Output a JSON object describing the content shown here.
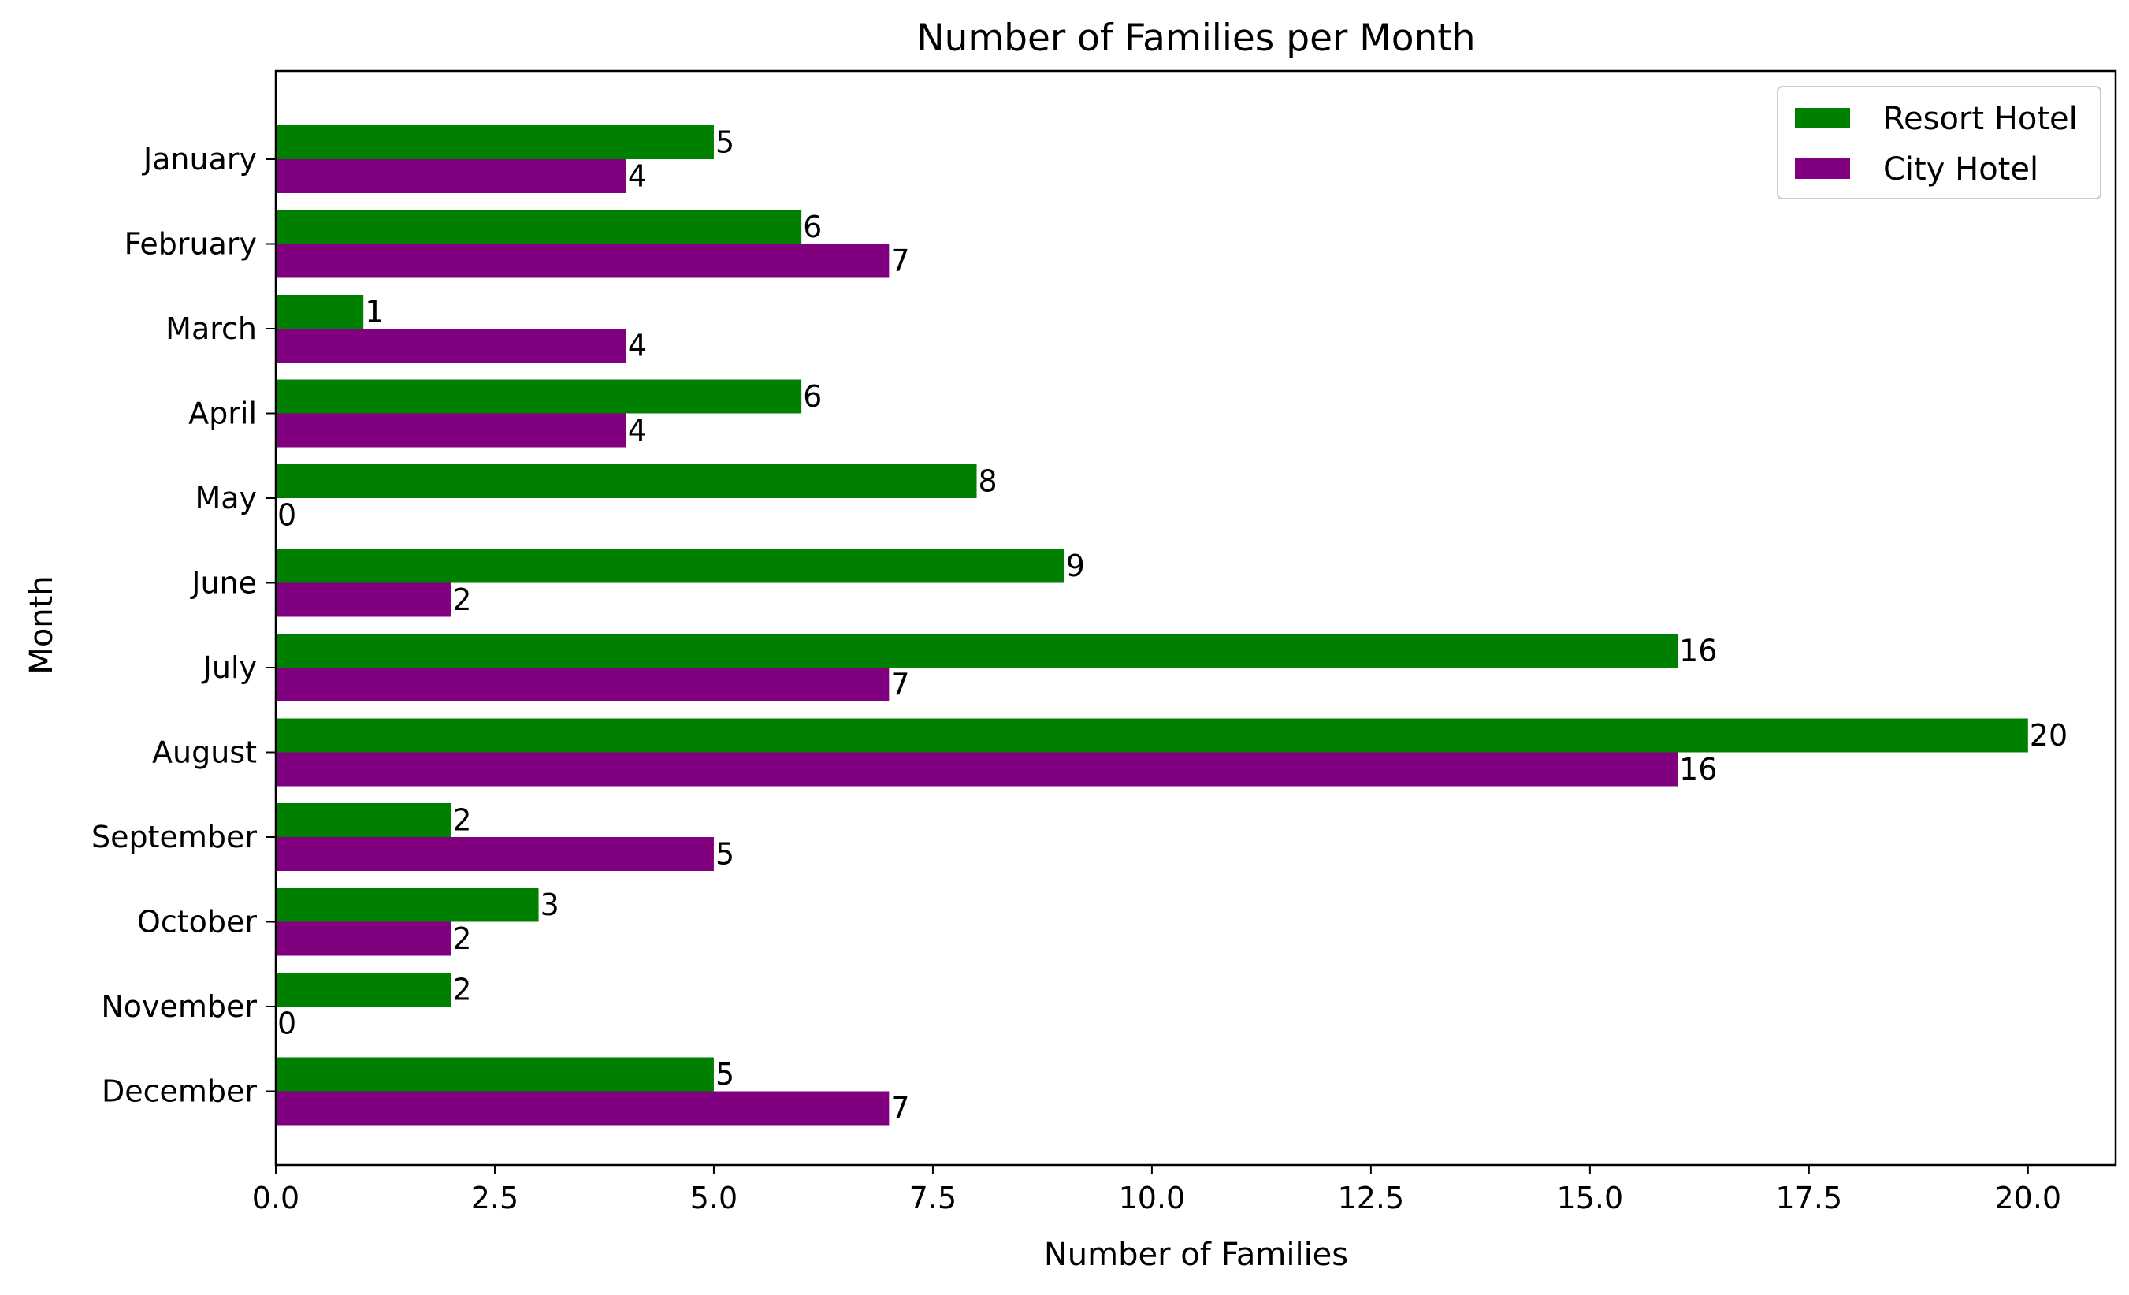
{
  "chart_data": {
    "type": "bar",
    "orientation": "horizontal",
    "title": "Number of Families per Month",
    "xlabel": "Number of Families",
    "ylabel": "Month",
    "categories": [
      "January",
      "February",
      "March",
      "April",
      "May",
      "June",
      "July",
      "August",
      "September",
      "October",
      "November",
      "December"
    ],
    "series": [
      {
        "name": "Resort Hotel",
        "color": "#008000",
        "values": [
          5,
          6,
          1,
          6,
          8,
          9,
          16,
          20,
          2,
          3,
          2,
          5
        ]
      },
      {
        "name": "City Hotel",
        "color": "#800080",
        "values": [
          4,
          7,
          4,
          4,
          0,
          2,
          7,
          16,
          5,
          2,
          0,
          7
        ]
      }
    ],
    "xlim": [
      0,
      21
    ],
    "xticks": [
      0,
      2.5,
      5,
      7.5,
      10,
      12.5,
      15,
      17.5,
      20
    ],
    "xtick_labels": [
      "0.0",
      "2.5",
      "5.0",
      "7.5",
      "10.0",
      "12.5",
      "15.0",
      "17.5",
      "20.0"
    ],
    "grid": false,
    "legend_position": "top-right"
  }
}
